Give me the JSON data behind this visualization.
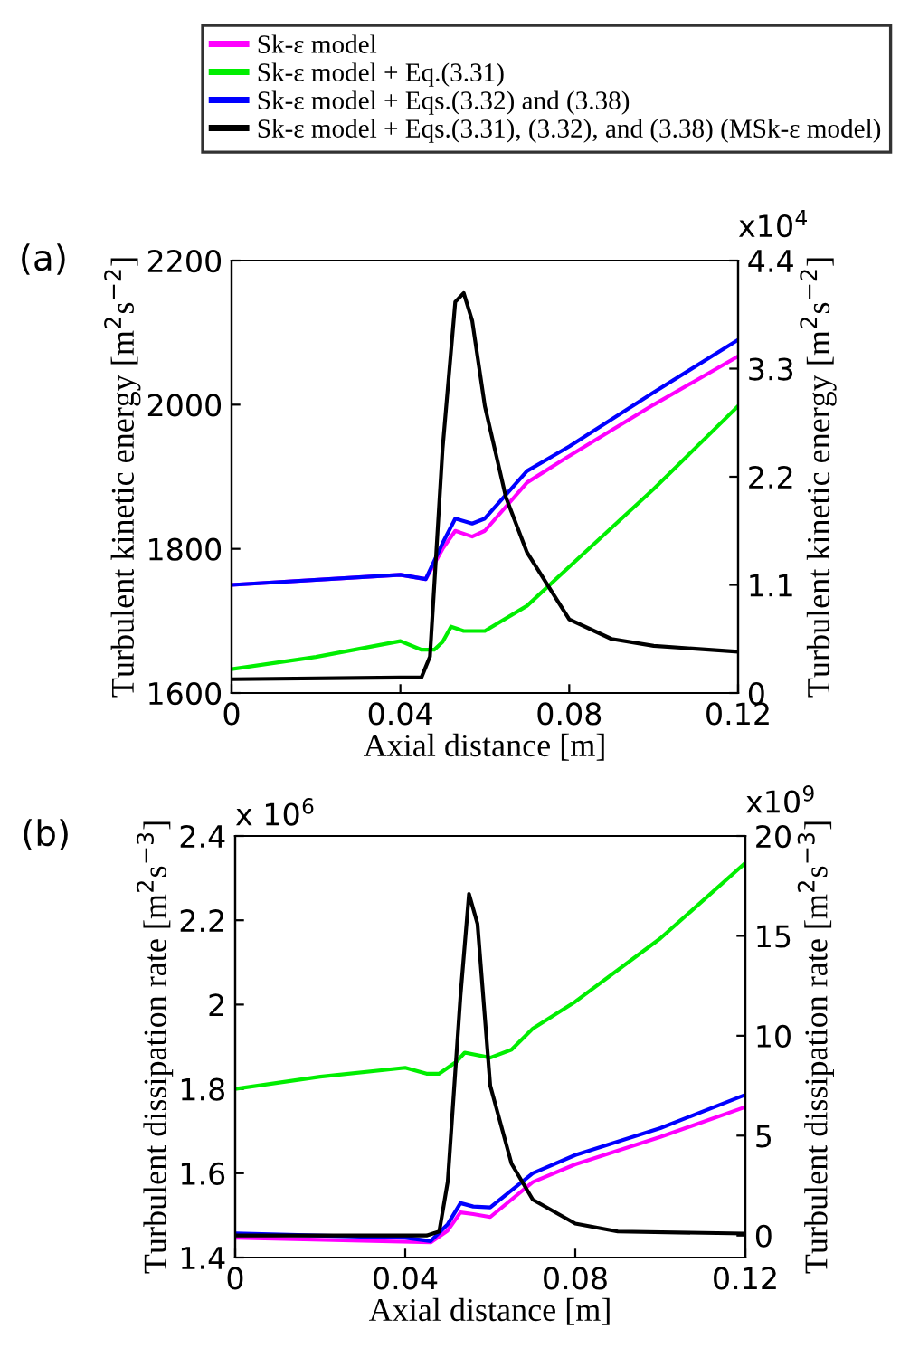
{
  "chart_data": [
    {
      "type": "line",
      "title": "(a)",
      "xlabel": "Axial distance [m]",
      "ylabel": "Turbulent kinetic energy [m$^{2}$s$^{−2}$]",
      "y2label": "Turbulent kinetic energy [m$^{2}$s$^{−2}$]",
      "annotations": [
        "x10$^{4}$"
      ],
      "xlim": [
        0,
        0.12
      ],
      "xticks": [
        0,
        0.04,
        0.08,
        0.12
      ],
      "ylim": [
        1600,
        2200
      ],
      "yticks": [
        1600,
        1800,
        2000,
        2200
      ],
      "y2lim": [
        0,
        4.4
      ],
      "y2ticks": [
        0,
        1.1,
        2.2,
        3.3,
        4.4
      ],
      "legend": "top",
      "grid": false,
      "marker": "none",
      "line_style": "solid",
      "series": [
        {
          "name": "Sk-ε model",
          "color": "#ff00ff",
          "x": [
            0,
            0.04,
            0.046,
            0.05,
            0.053,
            0.057,
            0.06,
            0.07,
            0.08,
            0.1,
            0.12
          ],
          "values": [
            1750,
            1764,
            1758,
            1800,
            1825,
            1817,
            1825,
            1892,
            1929,
            2000,
            2067
          ]
        },
        {
          "name": "Sk-ε model + Eq.(3.31)",
          "color": "#00ee00",
          "x": [
            0,
            0.02,
            0.04,
            0.045,
            0.048,
            0.05,
            0.052,
            0.055,
            0.06,
            0.07,
            0.08,
            0.1,
            0.12
          ],
          "values": [
            1633,
            1650,
            1672,
            1660,
            1660,
            1671,
            1692,
            1686,
            1686,
            1721,
            1775,
            1883,
            1998
          ]
        },
        {
          "name": "Sk-ε model + Eqs.(3.32) and (3.38)",
          "color": "#0000ff",
          "x": [
            0,
            0.04,
            0.046,
            0.05,
            0.053,
            0.057,
            0.06,
            0.07,
            0.08,
            0.1,
            0.12
          ],
          "values": [
            1750,
            1764,
            1758,
            1808,
            1842,
            1835,
            1842,
            1908,
            1942,
            2017,
            2090
          ]
        },
        {
          "name": "Sk-ε model + Eqs.(3.31), (3.32), and (3.38) (MSk-ε model)",
          "color": "#000000",
          "axis": "y2",
          "x": [
            0,
            0.045,
            0.047,
            0.05,
            0.053,
            0.055,
            0.057,
            0.06,
            0.065,
            0.07,
            0.08,
            0.09,
            0.1,
            0.12
          ],
          "values": [
            0.14,
            0.16,
            0.37,
            2.49,
            3.98,
            4.07,
            3.79,
            2.92,
            1.99,
            1.43,
            0.75,
            0.55,
            0.48,
            0.42
          ]
        }
      ]
    },
    {
      "type": "line",
      "title": "(b)",
      "xlabel": "Axial distance [m]",
      "ylabel": "Turbulent dissipation rate [m$^{2}$s$^{−3}$]",
      "y2label": "Turbulent dissipation rate [m$^{2}$s$^{−3}$]",
      "annotations": [
        "x 10$^{6}$",
        "x10$^{9}$"
      ],
      "xlim": [
        0,
        0.12
      ],
      "xticks": [
        0,
        0.04,
        0.08,
        0.12
      ],
      "ylim": [
        1.4,
        2.4
      ],
      "yticks": [
        1.4,
        1.6,
        1.8,
        2,
        2.2,
        2.4
      ],
      "y2lim": [
        -1.1,
        20
      ],
      "y2ticks": [
        0,
        5,
        10,
        15,
        20
      ],
      "grid": false,
      "marker": "none",
      "line_style": "solid",
      "series": [
        {
          "color": "#ff00ff",
          "x": [
            0,
            0.046,
            0.05,
            0.053,
            0.056,
            0.06,
            0.07,
            0.08,
            0.1,
            0.12
          ],
          "values": [
            1.447,
            1.436,
            1.464,
            1.507,
            1.503,
            1.496,
            1.579,
            1.621,
            1.686,
            1.757
          ]
        },
        {
          "color": "#00ee00",
          "x": [
            0,
            0.02,
            0.04,
            0.045,
            0.048,
            0.052,
            0.054,
            0.06,
            0.065,
            0.07,
            0.08,
            0.1,
            0.12
          ],
          "values": [
            1.8,
            1.829,
            1.85,
            1.836,
            1.836,
            1.864,
            1.886,
            1.874,
            1.893,
            1.943,
            2.007,
            2.157,
            2.336
          ]
        },
        {
          "color": "#0000ff",
          "x": [
            0,
            0.04,
            0.046,
            0.05,
            0.053,
            0.056,
            0.06,
            0.07,
            0.08,
            0.1,
            0.12
          ],
          "values": [
            1.457,
            1.447,
            1.439,
            1.479,
            1.529,
            1.521,
            1.519,
            1.6,
            1.643,
            1.707,
            1.786
          ]
        },
        {
          "color": "#000000",
          "axis": "y2",
          "x": [
            0,
            0.045,
            0.048,
            0.05,
            0.053,
            0.055,
            0.057,
            0.06,
            0.065,
            0.07,
            0.08,
            0.09,
            0.12
          ],
          "values": [
            0,
            0,
            0.2,
            2.7,
            12.0,
            17.1,
            15.6,
            7.5,
            3.6,
            1.8,
            0.6,
            0.2,
            0.1
          ]
        }
      ]
    }
  ]
}
